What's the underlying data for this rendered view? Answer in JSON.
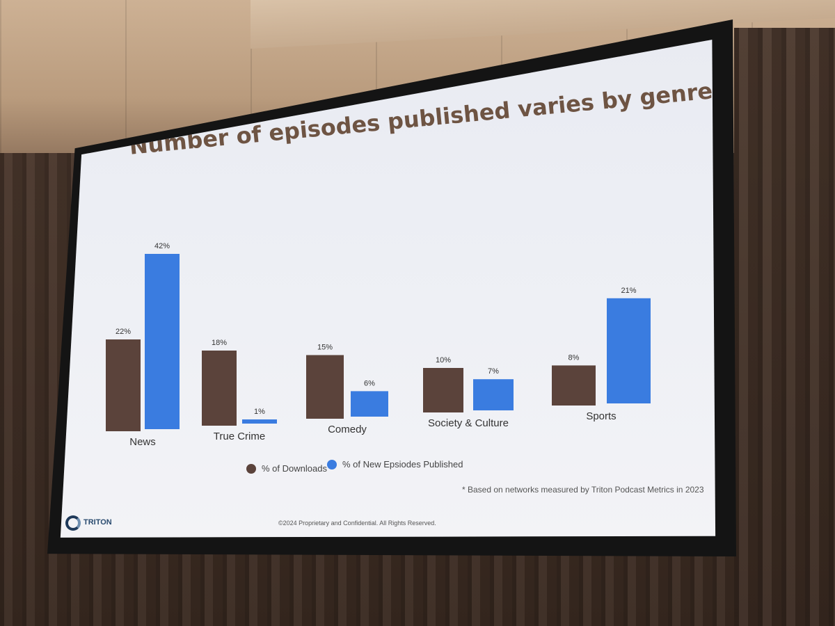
{
  "chart_data": {
    "type": "bar",
    "title": "Number of episodes published varies by genre",
    "categories": [
      "News",
      "True Crime",
      "Comedy",
      "Society & Culture",
      "Sports"
    ],
    "series": [
      {
        "name": "% of Downloads",
        "values": [
          22,
          18,
          15,
          10,
          8
        ],
        "labels": [
          "22%",
          "18%",
          "15%",
          "10%",
          "8%"
        ],
        "color": "#5b433b"
      },
      {
        "name": "% of New Epsiodes Published",
        "values": [
          42,
          1,
          6,
          7,
          21
        ],
        "labels": [
          "42%",
          "1%",
          "6%",
          "7%",
          "21%"
        ],
        "color": "#3a7ce0"
      }
    ],
    "ylim": [
      0,
      45
    ],
    "legend": "bottom"
  },
  "note": "* Based on networks measured by Triton Podcast Metrics in 2023",
  "footer": "©2024 Proprietary and Confidential. All Rights Reserved.",
  "logo_text": "TRITON"
}
